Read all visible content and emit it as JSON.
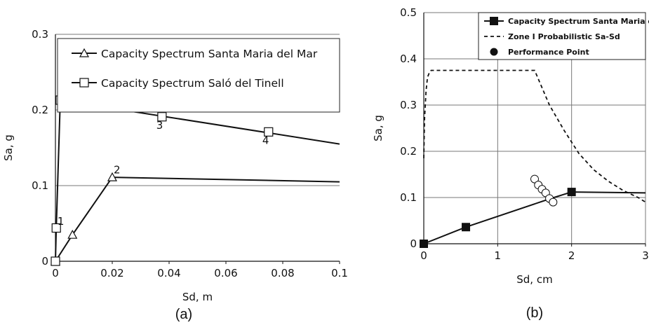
{
  "chart_data": [
    {
      "id": "a",
      "type": "line",
      "caption": "(a)",
      "xlabel": "Sd, m",
      "ylabel": "Sa, g",
      "xlim": [
        0,
        0.1
      ],
      "ylim": [
        0,
        0.3
      ],
      "xticks": [
        0,
        0.02,
        0.04,
        0.06,
        0.08,
        0.1
      ],
      "xtick_labels": [
        "0",
        "0.02",
        "0.04",
        "0.06",
        "0.08",
        "0.1"
      ],
      "yticks": [
        0,
        0.1,
        0.2,
        0.3
      ],
      "ytick_labels": [
        "0",
        "0.1",
        "0.2",
        "0.3"
      ],
      "grid": "horizontal",
      "legend_position": "top-right",
      "series": [
        {
          "name": "Capacity Spectrum Santa Maria del Mar",
          "marker": "triangle",
          "x": [
            0,
            0.006,
            0.02,
            0.1
          ],
          "y": [
            0,
            0.035,
            0.111,
            0.105
          ],
          "marker_points": [
            [
              0,
              0
            ],
            [
              0.006,
              0.035
            ],
            [
              0.02,
              0.111
            ]
          ]
        },
        {
          "name": "Capacity Spectrum Saló del Tinell",
          "marker": "square",
          "x": [
            0,
            0.0003,
            0.0017,
            0.1
          ],
          "y": [
            0,
            0.044,
            0.213,
            0.155
          ],
          "marker_points": [
            [
              0,
              0
            ],
            [
              0.0003,
              0.044
            ],
            [
              0.0017,
              0.213
            ],
            [
              0.0375,
              0.191
            ],
            [
              0.075,
              0.171
            ]
          ]
        }
      ],
      "annotations": [
        {
          "text": "1",
          "x": 0.0007,
          "y": 0.048
        },
        {
          "text": "2",
          "x": 0.0012,
          "y": 0.197
        },
        {
          "text": "2",
          "x": 0.0205,
          "y": 0.116
        },
        {
          "text": "3",
          "x": 0.0355,
          "y": 0.175
        },
        {
          "text": "4",
          "x": 0.0728,
          "y": 0.155
        }
      ]
    },
    {
      "id": "b",
      "type": "line",
      "caption": "(b)",
      "xlabel": "Sd, cm",
      "ylabel": "Sa, g",
      "xlim": [
        0,
        3
      ],
      "ylim": [
        0,
        0.5
      ],
      "xticks": [
        0,
        1,
        2,
        3
      ],
      "xtick_labels": [
        "0",
        "1",
        "2",
        "3"
      ],
      "yticks": [
        0,
        0.1,
        0.2,
        0.3,
        0.4,
        0.5
      ],
      "ytick_labels": [
        "0",
        "0.1",
        "0.2",
        "0.3",
        "0.4",
        "0.5"
      ],
      "grid": "both",
      "legend_position": "top-right",
      "series": [
        {
          "name": "Capacity Spectrum Santa Maria del Mar",
          "marker": "filled-square",
          "style": "solid",
          "x": [
            0,
            0.57,
            1.7,
            2.0,
            3.0
          ],
          "y": [
            0,
            0.036,
            0.097,
            0.112,
            0.11
          ],
          "marker_points": [
            [
              0,
              0
            ],
            [
              0.57,
              0.036
            ],
            [
              2.0,
              0.112
            ]
          ]
        },
        {
          "name": "Zone I Probabilistic Sa-Sd",
          "marker": "none",
          "style": "dashed",
          "x": [
            0,
            0.01,
            0.03,
            0.05,
            0.08,
            0.1,
            1.5,
            1.7,
            1.9,
            2.1,
            2.3,
            2.5,
            2.7,
            2.9,
            3.0
          ],
          "y": [
            0.185,
            0.27,
            0.33,
            0.36,
            0.372,
            0.375,
            0.375,
            0.3,
            0.245,
            0.195,
            0.16,
            0.135,
            0.115,
            0.1,
            0.09
          ]
        },
        {
          "name": "Performance Point",
          "marker": "filled-circle",
          "style": "none",
          "x": [
            1.7
          ],
          "y": [
            0.097
          ]
        },
        {
          "name": "",
          "marker": "open-circle",
          "style": "none",
          "x": [
            1.5,
            1.55,
            1.6,
            1.65,
            1.7,
            1.75
          ],
          "y": [
            0.14,
            0.127,
            0.118,
            0.11,
            0.098,
            0.09
          ]
        }
      ]
    }
  ]
}
